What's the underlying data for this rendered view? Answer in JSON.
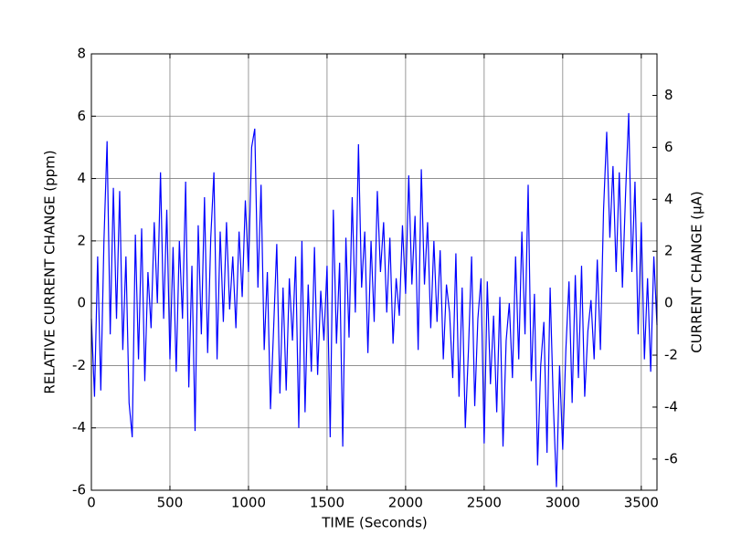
{
  "chart_data": {
    "type": "line",
    "x_label": "TIME (Seconds)",
    "y_label": "RELATIVE CURRENT CHANGE (ppm)",
    "y2_label": "CURRENT CHANGE (μA)",
    "xlim": [
      0,
      3600
    ],
    "xticks": [
      0,
      500,
      1000,
      1500,
      2000,
      2500,
      3000,
      3500
    ],
    "ylim": [
      -6,
      8
    ],
    "yticks": [
      -6,
      -4,
      -2,
      0,
      2,
      4,
      6,
      8
    ],
    "y2lim": [
      -7.2,
      9.6
    ],
    "y2ticks": [
      -6,
      -4,
      -2,
      0,
      2,
      4,
      6,
      8
    ],
    "grid": true,
    "x": [
      0,
      20,
      40,
      60,
      80,
      100,
      120,
      140,
      160,
      180,
      200,
      220,
      240,
      260,
      280,
      300,
      320,
      340,
      360,
      380,
      400,
      420,
      440,
      460,
      480,
      500,
      520,
      540,
      560,
      580,
      600,
      620,
      640,
      660,
      680,
      700,
      720,
      740,
      760,
      780,
      800,
      820,
      840,
      860,
      880,
      900,
      920,
      940,
      960,
      980,
      1000,
      1020,
      1040,
      1060,
      1080,
      1100,
      1120,
      1140,
      1160,
      1180,
      1200,
      1220,
      1240,
      1260,
      1280,
      1300,
      1320,
      1340,
      1360,
      1380,
      1400,
      1420,
      1440,
      1460,
      1480,
      1500,
      1520,
      1540,
      1560,
      1580,
      1600,
      1620,
      1640,
      1660,
      1680,
      1700,
      1720,
      1740,
      1760,
      1780,
      1800,
      1820,
      1840,
      1860,
      1880,
      1900,
      1920,
      1940,
      1960,
      1980,
      2000,
      2020,
      2040,
      2060,
      2080,
      2100,
      2120,
      2140,
      2160,
      2180,
      2200,
      2220,
      2240,
      2260,
      2280,
      2300,
      2320,
      2340,
      2360,
      2380,
      2400,
      2420,
      2440,
      2460,
      2480,
      2500,
      2520,
      2540,
      2560,
      2580,
      2600,
      2620,
      2640,
      2660,
      2680,
      2700,
      2720,
      2740,
      2760,
      2780,
      2800,
      2820,
      2840,
      2860,
      2880,
      2900,
      2920,
      2940,
      2960,
      2980,
      3000,
      3020,
      3040,
      3060,
      3080,
      3100,
      3120,
      3140,
      3160,
      3180,
      3200,
      3220,
      3240,
      3260,
      3280,
      3300,
      3320,
      3340,
      3360,
      3380,
      3400,
      3420,
      3440,
      3460,
      3480,
      3500,
      3520,
      3540,
      3560,
      3580,
      3600
    ],
    "series": [
      {
        "color": "#0000ff",
        "values": [
          -0.5,
          -3.0,
          1.5,
          -2.8,
          2.0,
          5.2,
          -1.0,
          3.7,
          -0.5,
          3.6,
          -1.5,
          1.5,
          -3.2,
          -4.3,
          2.2,
          -1.8,
          2.4,
          -2.5,
          1.0,
          -0.8,
          2.6,
          0.0,
          4.2,
          -0.5,
          3.0,
          -1.8,
          1.8,
          -2.2,
          2.0,
          -0.5,
          3.9,
          -2.7,
          1.2,
          -4.1,
          2.5,
          -1.0,
          3.4,
          -1.6,
          2.1,
          4.2,
          -1.8,
          2.3,
          -0.6,
          2.6,
          -0.2,
          1.5,
          -0.8,
          2.3,
          0.2,
          3.3,
          1.0,
          5.0,
          5.6,
          0.5,
          3.8,
          -1.5,
          1.0,
          -3.4,
          -0.8,
          1.9,
          -2.9,
          0.5,
          -2.8,
          0.8,
          -1.2,
          1.5,
          -4.0,
          2.0,
          -3.5,
          0.6,
          -2.2,
          1.8,
          -2.3,
          0.4,
          -1.2,
          1.2,
          -4.3,
          3.0,
          -1.3,
          1.3,
          -4.6,
          2.1,
          -1.1,
          3.4,
          -0.3,
          5.1,
          0.5,
          2.3,
          -1.6,
          2.0,
          -0.6,
          3.6,
          1.0,
          2.6,
          -0.3,
          2.1,
          -1.3,
          0.8,
          -0.4,
          2.5,
          0.3,
          4.1,
          0.6,
          2.8,
          -1.5,
          4.3,
          0.6,
          2.6,
          -0.8,
          2.0,
          -0.6,
          1.7,
          -1.8,
          0.6,
          -0.3,
          -2.4,
          1.6,
          -3.0,
          0.5,
          -4.0,
          -1.5,
          1.5,
          -3.3,
          -0.5,
          0.8,
          -4.5,
          0.7,
          -2.6,
          -0.4,
          -3.5,
          0.2,
          -4.6,
          -1.2,
          0.0,
          -2.4,
          1.5,
          -1.8,
          2.3,
          -1.0,
          3.8,
          -2.5,
          0.3,
          -5.2,
          -2.0,
          -0.6,
          -4.8,
          0.5,
          -3.2,
          -5.9,
          -2.0,
          -4.7,
          -1.5,
          0.7,
          -3.2,
          0.9,
          -2.4,
          1.2,
          -3.0,
          -0.9,
          0.1,
          -1.8,
          1.4,
          -1.5,
          3.0,
          5.5,
          2.1,
          4.4,
          1.0,
          4.2,
          0.5,
          3.5,
          6.1,
          1.0,
          3.9,
          -1.0,
          2.6,
          -1.8,
          0.8,
          -2.2,
          1.5,
          -0.7
        ]
      }
    ]
  }
}
